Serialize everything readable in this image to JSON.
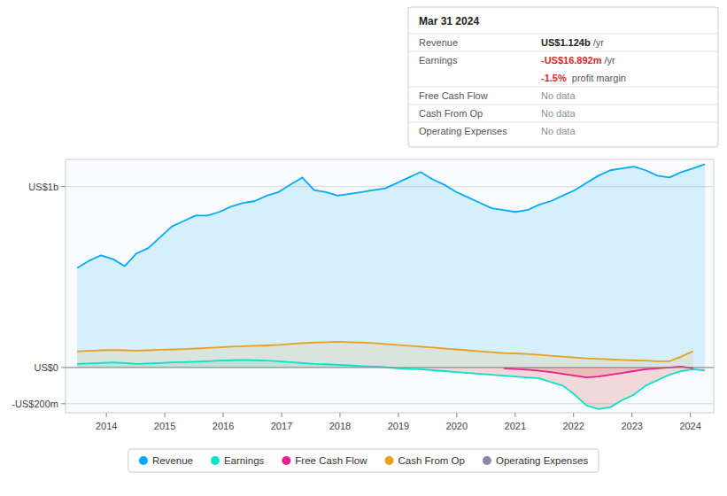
{
  "chart_data": {
    "type": "area",
    "x": [
      2013.5,
      2013.7028,
      2013.9057,
      2014.1085,
      2014.3113,
      2014.5142,
      2014.717,
      2014.9198,
      2015.1226,
      2015.3255,
      2015.5283,
      2015.7311,
      2015.934,
      2016.1368,
      2016.3396,
      2016.5425,
      2016.7453,
      2016.9481,
      2017.1509,
      2017.3538,
      2017.5566,
      2017.7594,
      2017.9623,
      2018.1651,
      2018.3679,
      2018.5708,
      2018.7736,
      2018.9764,
      2019.1792,
      2019.3821,
      2019.5849,
      2019.7877,
      2019.9906,
      2020.1934,
      2020.3962,
      2020.5991,
      2020.8019,
      2021.0047,
      2021.2075,
      2021.4104,
      2021.6132,
      2021.816,
      2022.0189,
      2022.2217,
      2022.4245,
      2022.6274,
      2022.8302,
      2023.033,
      2023.2358,
      2023.4387,
      2023.6415,
      2023.8443,
      2024.0472,
      2024.25
    ],
    "xlim": [
      2013.3,
      2024.4
    ],
    "xticks": [
      2014,
      2015,
      2016,
      2017,
      2018,
      2019,
      2020,
      2021,
      2022,
      2023,
      2024
    ],
    "ylim": [
      -250,
      1150
    ],
    "yticks": [
      {
        "value": 1000,
        "label": "US$1b"
      },
      {
        "value": 0,
        "label": "US$0"
      },
      {
        "value": -200,
        "label": "-US$200m"
      }
    ],
    "grid": true,
    "legend": "bottom",
    "series": [
      {
        "name": "Revenue",
        "color": "#00aaff",
        "values": [
          550,
          590,
          620,
          600,
          560,
          630,
          660,
          720,
          780,
          810,
          840,
          840,
          860,
          890,
          910,
          920,
          950,
          970,
          1010,
          1050,
          980,
          970,
          950,
          960,
          970,
          980,
          990,
          1020,
          1050,
          1080,
          1040,
          1010,
          970,
          940,
          910,
          880,
          870,
          860,
          870,
          900,
          920,
          950,
          980,
          1020,
          1060,
          1090,
          1100,
          1110,
          1090,
          1060,
          1050,
          1080,
          1100,
          1124
        ]
      },
      {
        "name": "Earnings",
        "color": "#00e5c8",
        "values": [
          20,
          22,
          25,
          28,
          25,
          20,
          22,
          25,
          28,
          30,
          32,
          35,
          38,
          40,
          42,
          40,
          38,
          35,
          30,
          25,
          20,
          18,
          15,
          12,
          8,
          5,
          2,
          -5,
          -8,
          -10,
          -15,
          -20,
          -25,
          -30,
          -35,
          -40,
          -45,
          -50,
          -55,
          -60,
          -80,
          -100,
          -150,
          -210,
          -230,
          -220,
          -180,
          -150,
          -100,
          -70,
          -40,
          -20,
          -10,
          -17
        ]
      },
      {
        "name": "Free Cash Flow",
        "color": "#e91e8c",
        "values": [
          null,
          null,
          null,
          null,
          null,
          null,
          null,
          null,
          null,
          null,
          null,
          null,
          null,
          null,
          null,
          null,
          null,
          null,
          null,
          null,
          null,
          null,
          null,
          null,
          null,
          null,
          null,
          null,
          null,
          null,
          null,
          null,
          null,
          null,
          null,
          null,
          -5,
          -8,
          -12,
          -18,
          -25,
          -35,
          -45,
          -55,
          -50,
          -40,
          -30,
          -20,
          -10,
          -5,
          0,
          5,
          -5,
          null
        ]
      },
      {
        "name": "Cash From Op",
        "color": "#e8a020",
        "values": [
          90,
          92,
          95,
          97,
          95,
          93,
          95,
          98,
          100,
          102,
          105,
          108,
          112,
          115,
          118,
          120,
          122,
          125,
          130,
          135,
          138,
          140,
          142,
          140,
          138,
          135,
          130,
          125,
          120,
          115,
          110,
          105,
          100,
          95,
          90,
          85,
          80,
          78,
          75,
          70,
          65,
          60,
          55,
          50,
          48,
          45,
          42,
          40,
          38,
          35,
          35,
          60,
          90,
          null
        ]
      },
      {
        "name": "Operating Expenses",
        "color": "#8888aa",
        "values": [
          null,
          null,
          null,
          null,
          null,
          null,
          null,
          null,
          null,
          null,
          null,
          null,
          null,
          null,
          null,
          null,
          null,
          null,
          null,
          null,
          null,
          null,
          null,
          null,
          null,
          null,
          null,
          null,
          null,
          null,
          null,
          null,
          null,
          null,
          null,
          null,
          null,
          null,
          null,
          null,
          null,
          null,
          null,
          null,
          null,
          null,
          null,
          null,
          null,
          null,
          null,
          null,
          null,
          null
        ]
      }
    ],
    "annotations": [
      {
        "text": "Mar 31 2024"
      },
      {
        "label": "Revenue",
        "text": "US$1.124b",
        "unit": "/yr"
      },
      {
        "label": "Earnings",
        "text": "-US$16.892m",
        "unit": "/yr"
      },
      {
        "text": "-1.5%",
        "unit": " profit margin"
      },
      {
        "label": "Free Cash Flow",
        "text": "No data"
      },
      {
        "label": "Cash From Op",
        "text": "No data"
      },
      {
        "label": "Operating Expenses",
        "text": "No data"
      }
    ]
  }
}
